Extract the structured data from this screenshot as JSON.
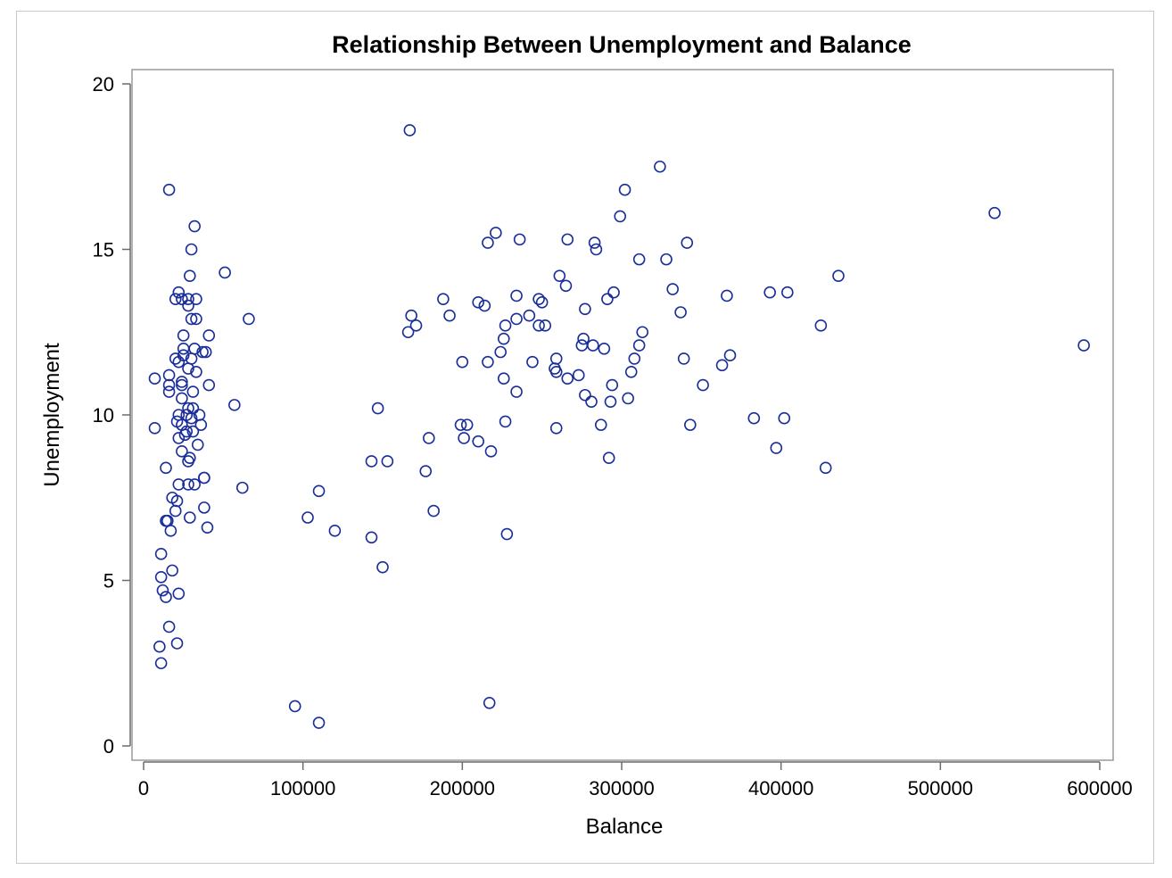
{
  "chart_data": {
    "type": "scatter",
    "title": "Relationship Between Unemployment and Balance",
    "xlabel": "Balance",
    "ylabel": "Unemployment",
    "xlim": [
      0,
      600000
    ],
    "ylim": [
      0,
      20
    ],
    "xticks": [
      "0",
      "100000",
      "200000",
      "300000",
      "400000",
      "500000",
      "600000"
    ],
    "yticks": [
      "0",
      "5",
      "10",
      "15",
      "20"
    ],
    "xtick_values": [
      0,
      100000,
      200000,
      300000,
      400000,
      500000,
      600000
    ],
    "ytick_values": [
      0,
      5,
      10,
      15,
      20
    ],
    "grid": false,
    "marker_color": "#1a2e9a",
    "points": [
      [
        167000,
        18.6
      ],
      [
        16000,
        16.8
      ],
      [
        324000,
        17.5
      ],
      [
        302000,
        16.8
      ],
      [
        299000,
        16.0
      ],
      [
        534000,
        16.1
      ],
      [
        32000,
        15.7
      ],
      [
        221000,
        15.5
      ],
      [
        216000,
        15.2
      ],
      [
        236000,
        15.3
      ],
      [
        266000,
        15.3
      ],
      [
        283000,
        15.2
      ],
      [
        284000,
        15.0
      ],
      [
        341000,
        15.2
      ],
      [
        30000,
        15.0
      ],
      [
        311000,
        14.7
      ],
      [
        328000,
        14.7
      ],
      [
        51000,
        14.3
      ],
      [
        29000,
        14.2
      ],
      [
        261000,
        14.2
      ],
      [
        436000,
        14.2
      ],
      [
        265000,
        13.9
      ],
      [
        332000,
        13.8
      ],
      [
        22000,
        13.7
      ],
      [
        234000,
        13.6
      ],
      [
        295000,
        13.7
      ],
      [
        366000,
        13.6
      ],
      [
        393000,
        13.7
      ],
      [
        404000,
        13.7
      ],
      [
        20000,
        13.5
      ],
      [
        24000,
        13.5
      ],
      [
        28000,
        13.5
      ],
      [
        33000,
        13.5
      ],
      [
        188000,
        13.5
      ],
      [
        210000,
        13.4
      ],
      [
        214000,
        13.3
      ],
      [
        248000,
        13.5
      ],
      [
        250000,
        13.4
      ],
      [
        291000,
        13.5
      ],
      [
        277000,
        13.2
      ],
      [
        337000,
        13.1
      ],
      [
        28000,
        13.3
      ],
      [
        168000,
        13.0
      ],
      [
        192000,
        13.0
      ],
      [
        30000,
        12.9
      ],
      [
        33000,
        12.9
      ],
      [
        66000,
        12.9
      ],
      [
        234000,
        12.9
      ],
      [
        242000,
        13.0
      ],
      [
        171000,
        12.7
      ],
      [
        166000,
        12.5
      ],
      [
        227000,
        12.7
      ],
      [
        248000,
        12.7
      ],
      [
        252000,
        12.7
      ],
      [
        425000,
        12.7
      ],
      [
        313000,
        12.5
      ],
      [
        25000,
        12.4
      ],
      [
        41000,
        12.4
      ],
      [
        226000,
        12.3
      ],
      [
        276000,
        12.3
      ],
      [
        275000,
        12.1
      ],
      [
        282000,
        12.1
      ],
      [
        289000,
        12.0
      ],
      [
        311000,
        12.1
      ],
      [
        590000,
        12.1
      ],
      [
        25000,
        12.0
      ],
      [
        32000,
        12.0
      ],
      [
        224000,
        11.9
      ],
      [
        37000,
        11.9
      ],
      [
        39000,
        11.9
      ],
      [
        20000,
        11.7
      ],
      [
        25000,
        11.8
      ],
      [
        30000,
        11.7
      ],
      [
        200000,
        11.6
      ],
      [
        216000,
        11.6
      ],
      [
        244000,
        11.6
      ],
      [
        259000,
        11.7
      ],
      [
        339000,
        11.7
      ],
      [
        308000,
        11.7
      ],
      [
        363000,
        11.5
      ],
      [
        368000,
        11.8
      ],
      [
        22000,
        11.6
      ],
      [
        28000,
        11.4
      ],
      [
        33000,
        11.3
      ],
      [
        16000,
        11.2
      ],
      [
        24000,
        11.0
      ],
      [
        7000,
        11.1
      ],
      [
        226000,
        11.1
      ],
      [
        258000,
        11.4
      ],
      [
        259000,
        11.3
      ],
      [
        266000,
        11.1
      ],
      [
        273000,
        11.2
      ],
      [
        306000,
        11.3
      ],
      [
        16000,
        10.9
      ],
      [
        24000,
        10.9
      ],
      [
        41000,
        10.9
      ],
      [
        294000,
        10.9
      ],
      [
        351000,
        10.9
      ],
      [
        16000,
        10.7
      ],
      [
        31000,
        10.7
      ],
      [
        234000,
        10.7
      ],
      [
        277000,
        10.6
      ],
      [
        24000,
        10.5
      ],
      [
        281000,
        10.4
      ],
      [
        293000,
        10.4
      ],
      [
        304000,
        10.5
      ],
      [
        28000,
        10.2
      ],
      [
        31000,
        10.2
      ],
      [
        57000,
        10.3
      ],
      [
        147000,
        10.2
      ],
      [
        22000,
        10.0
      ],
      [
        27000,
        10.0
      ],
      [
        35000,
        10.0
      ],
      [
        21000,
        9.8
      ],
      [
        30000,
        9.9
      ],
      [
        36000,
        9.7
      ],
      [
        383000,
        9.9
      ],
      [
        402000,
        9.9
      ],
      [
        24000,
        9.7
      ],
      [
        199000,
        9.7
      ],
      [
        203000,
        9.7
      ],
      [
        227000,
        9.8
      ],
      [
        287000,
        9.7
      ],
      [
        343000,
        9.7
      ],
      [
        7000,
        9.6
      ],
      [
        27000,
        9.5
      ],
      [
        31000,
        9.5
      ],
      [
        259000,
        9.6
      ],
      [
        22000,
        9.3
      ],
      [
        26000,
        9.4
      ],
      [
        34000,
        9.1
      ],
      [
        179000,
        9.3
      ],
      [
        201000,
        9.3
      ],
      [
        210000,
        9.2
      ],
      [
        218000,
        8.9
      ],
      [
        397000,
        9.0
      ],
      [
        24000,
        8.9
      ],
      [
        29000,
        8.7
      ],
      [
        28000,
        8.6
      ],
      [
        292000,
        8.7
      ],
      [
        143000,
        8.6
      ],
      [
        153000,
        8.6
      ],
      [
        14000,
        8.4
      ],
      [
        428000,
        8.4
      ],
      [
        177000,
        8.3
      ],
      [
        38000,
        8.1
      ],
      [
        38000,
        8.1
      ],
      [
        22000,
        7.9
      ],
      [
        28000,
        7.9
      ],
      [
        32000,
        7.9
      ],
      [
        62000,
        7.8
      ],
      [
        110000,
        7.7
      ],
      [
        18000,
        7.5
      ],
      [
        21000,
        7.4
      ],
      [
        20000,
        7.1
      ],
      [
        38000,
        7.2
      ],
      [
        182000,
        7.1
      ],
      [
        14000,
        6.8
      ],
      [
        15000,
        6.8
      ],
      [
        29000,
        6.9
      ],
      [
        103000,
        6.9
      ],
      [
        17000,
        6.5
      ],
      [
        40000,
        6.6
      ],
      [
        120000,
        6.5
      ],
      [
        143000,
        6.3
      ],
      [
        228000,
        6.4
      ],
      [
        11000,
        5.8
      ],
      [
        150000,
        5.4
      ],
      [
        18000,
        5.3
      ],
      [
        11000,
        5.1
      ],
      [
        12000,
        4.7
      ],
      [
        14000,
        4.5
      ],
      [
        22000,
        4.6
      ],
      [
        16000,
        3.6
      ],
      [
        10000,
        3.0
      ],
      [
        21000,
        3.1
      ],
      [
        11000,
        2.5
      ],
      [
        217000,
        1.3
      ],
      [
        95000,
        1.2
      ],
      [
        110000,
        0.7
      ]
    ]
  }
}
